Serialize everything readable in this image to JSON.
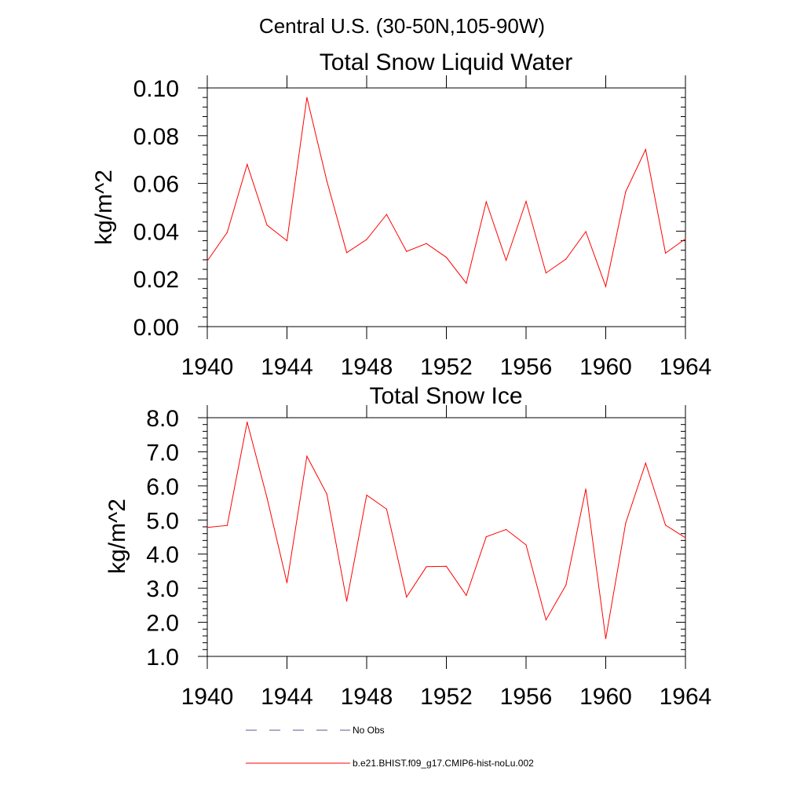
{
  "figure": {
    "suptitle": "Central U.S. (30-50N,105-90W)"
  },
  "legend": {
    "entries": [
      {
        "label": "No Obs",
        "color": "#5a5a8c",
        "style": "dashed"
      },
      {
        "label": "b.e21.BHIST.f09_g17.CMIP6-hist-noLu.002",
        "color": "#ff0000",
        "style": "solid"
      }
    ]
  },
  "chart_data": [
    {
      "type": "line",
      "title": "Total Snow Liquid Water",
      "xlabel": "",
      "ylabel": "kg/m^2",
      "xlim": [
        1940,
        1964
      ],
      "ylim": [
        0.0,
        0.1
      ],
      "xticks": [
        1940,
        1944,
        1948,
        1952,
        1956,
        1960,
        1964
      ],
      "yticks": [
        0.0,
        0.02,
        0.04,
        0.06,
        0.08,
        0.1
      ],
      "xtick_labels": [
        "1940",
        "1944",
        "1948",
        "1952",
        "1956",
        "1960",
        "1964"
      ],
      "ytick_labels": [
        "0.00",
        "0.02",
        "0.04",
        "0.06",
        "0.08",
        "0.10"
      ],
      "grid": false,
      "x": [
        1940,
        1941,
        1942,
        1943,
        1944,
        1945,
        1946,
        1947,
        1948,
        1949,
        1950,
        1951,
        1952,
        1953,
        1954,
        1955,
        1956,
        1957,
        1958,
        1959,
        1960,
        1961,
        1962,
        1963,
        1964
      ],
      "series": [
        {
          "name": "b.e21.BHIST.f09_g17.CMIP6-hist-noLu.002",
          "color": "#ff0000",
          "values": [
            0.0275,
            0.0395,
            0.068,
            0.0425,
            0.036,
            0.096,
            0.061,
            0.031,
            0.0365,
            0.047,
            0.0315,
            0.0348,
            0.029,
            0.0182,
            0.0523,
            0.0278,
            0.0525,
            0.0225,
            0.0283,
            0.0398,
            0.0168,
            0.0565,
            0.0742,
            0.0308,
            0.0368
          ]
        }
      ]
    },
    {
      "type": "line",
      "title": "Total Snow Ice",
      "xlabel": "",
      "ylabel": "kg/m^2",
      "xlim": [
        1940,
        1964
      ],
      "ylim": [
        1.0,
        8.0
      ],
      "xticks": [
        1940,
        1944,
        1948,
        1952,
        1956,
        1960,
        1964
      ],
      "yticks": [
        1.0,
        2.0,
        3.0,
        4.0,
        5.0,
        6.0,
        7.0,
        8.0
      ],
      "xtick_labels": [
        "1940",
        "1944",
        "1948",
        "1952",
        "1956",
        "1960",
        "1964"
      ],
      "ytick_labels": [
        "1.0",
        "2.0",
        "3.0",
        "4.0",
        "5.0",
        "6.0",
        "7.0",
        "8.0"
      ],
      "grid": false,
      "x": [
        1940,
        1941,
        1942,
        1943,
        1944,
        1945,
        1946,
        1947,
        1948,
        1949,
        1950,
        1951,
        1952,
        1953,
        1954,
        1955,
        1956,
        1957,
        1958,
        1959,
        1960,
        1961,
        1962,
        1963,
        1964
      ],
      "series": [
        {
          "name": "b.e21.BHIST.f09_g17.CMIP6-hist-noLu.002",
          "color": "#ff0000",
          "values": [
            4.78,
            4.84,
            7.87,
            5.65,
            3.16,
            6.87,
            5.76,
            2.62,
            5.73,
            5.32,
            2.74,
            3.63,
            3.64,
            2.79,
            4.51,
            4.72,
            4.27,
            2.07,
            3.09,
            5.91,
            1.52,
            4.91,
            6.67,
            4.85,
            4.48
          ]
        }
      ]
    }
  ]
}
